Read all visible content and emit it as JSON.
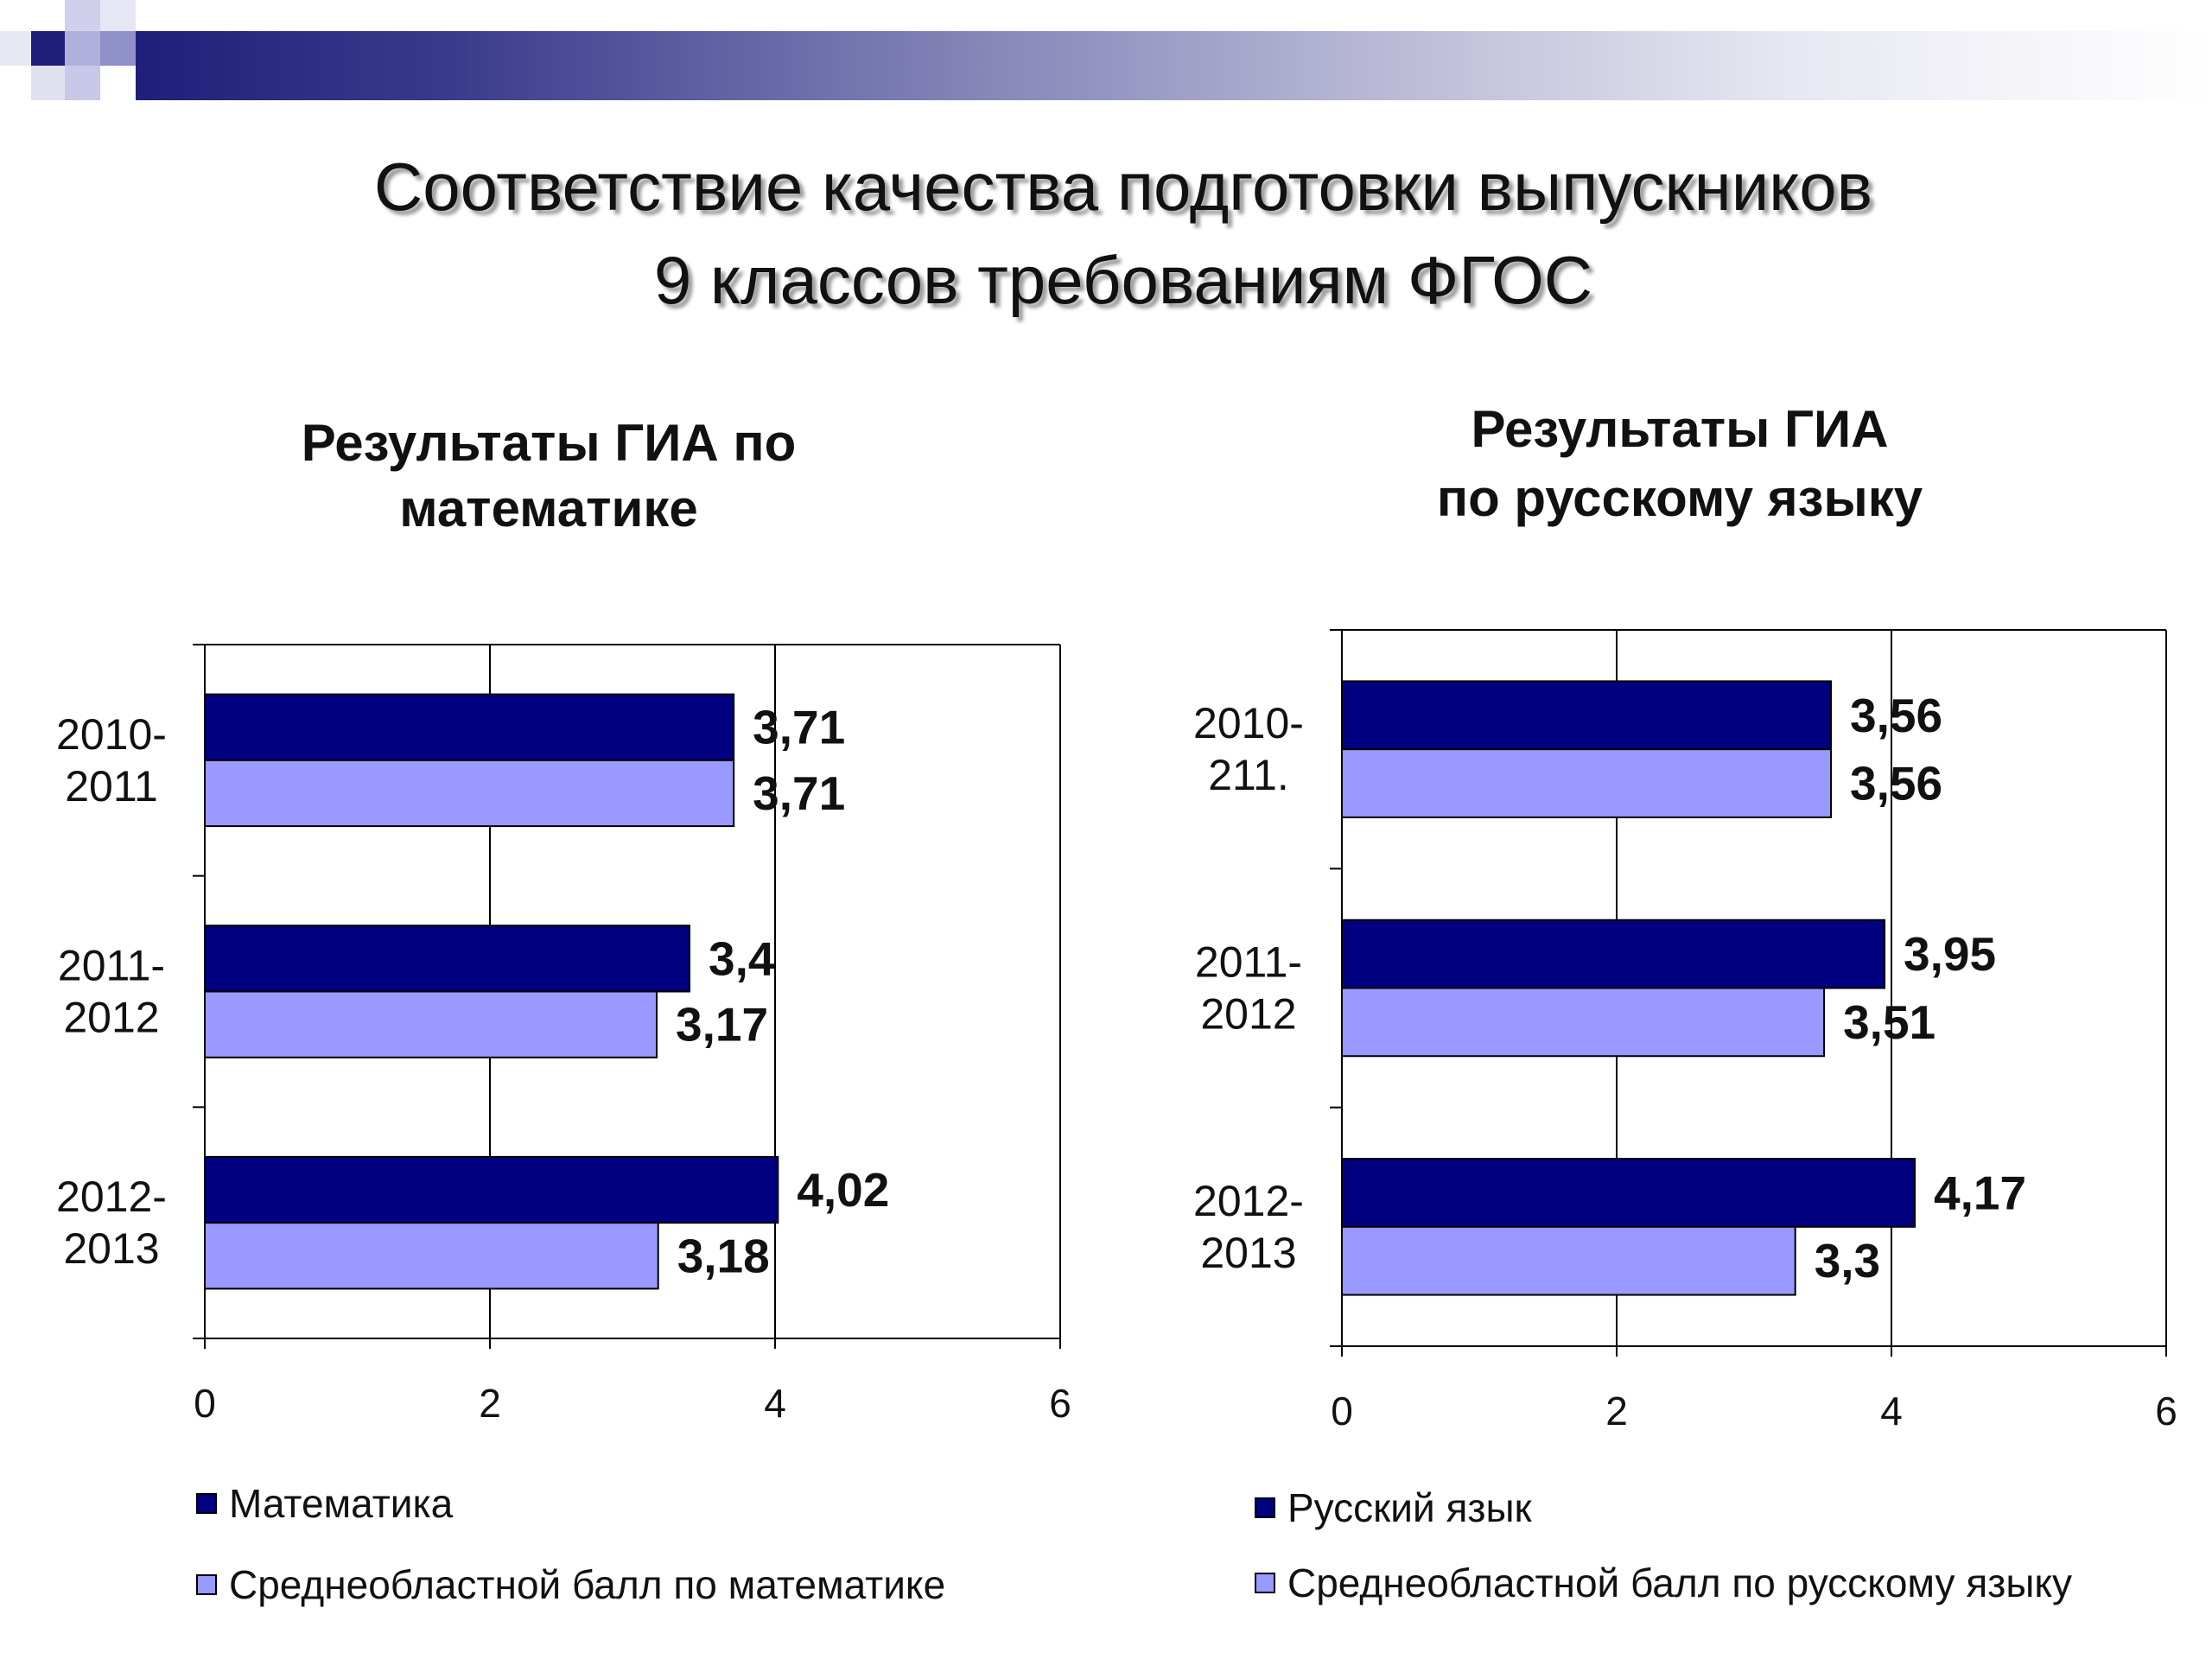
{
  "slide": {
    "title_lines": [
      "Соответствие качества подготовки выпускников",
      "9 классов требованиям ФГОС"
    ]
  },
  "theme": {
    "header_bar_start": "#1f1f7a",
    "header_bar_end": "#ffffff"
  },
  "chart_data": [
    {
      "type": "bar",
      "orientation": "horizontal",
      "title_lines": [
        "Результаты ГИА по",
        "математике"
      ],
      "categories": [
        [
          "2010-",
          "2011"
        ],
        [
          "2011-",
          "2012"
        ],
        [
          "2012-",
          "2013"
        ]
      ],
      "series": [
        {
          "name": "Математика",
          "color": "#000080",
          "values": [
            3.71,
            3.4,
            4.02
          ],
          "data_labels": [
            "3,71",
            "3,4",
            "4,02"
          ]
        },
        {
          "name": "Среднеобластной балл по математике",
          "color": "#9999ff",
          "values": [
            3.71,
            3.17,
            3.18
          ],
          "data_labels": [
            "3,71",
            "3,17",
            "3,18"
          ]
        }
      ],
      "xlim": [
        0,
        6
      ],
      "xticks": [
        0,
        2,
        4,
        6
      ],
      "grid": true,
      "legend": "bottom"
    },
    {
      "type": "bar",
      "orientation": "horizontal",
      "title_lines": [
        "Результаты ГИА",
        "по русскому языку"
      ],
      "categories": [
        [
          "2010-",
          "211."
        ],
        [
          "2011-",
          "2012"
        ],
        [
          "2012-",
          "2013"
        ]
      ],
      "series": [
        {
          "name": "Русский язык",
          "color": "#000080",
          "values": [
            3.56,
            3.95,
            4.17
          ],
          "data_labels": [
            "3,56",
            "3,95",
            "4,17"
          ]
        },
        {
          "name": "Среднеобластной балл по русскому языку",
          "color": "#9999ff",
          "values": [
            3.56,
            3.51,
            3.3
          ],
          "data_labels": [
            "3,56",
            "3,51",
            "3,3"
          ]
        }
      ],
      "xlim": [
        0,
        6
      ],
      "xticks": [
        0,
        2,
        4,
        6
      ],
      "grid": true,
      "legend": "bottom"
    }
  ]
}
